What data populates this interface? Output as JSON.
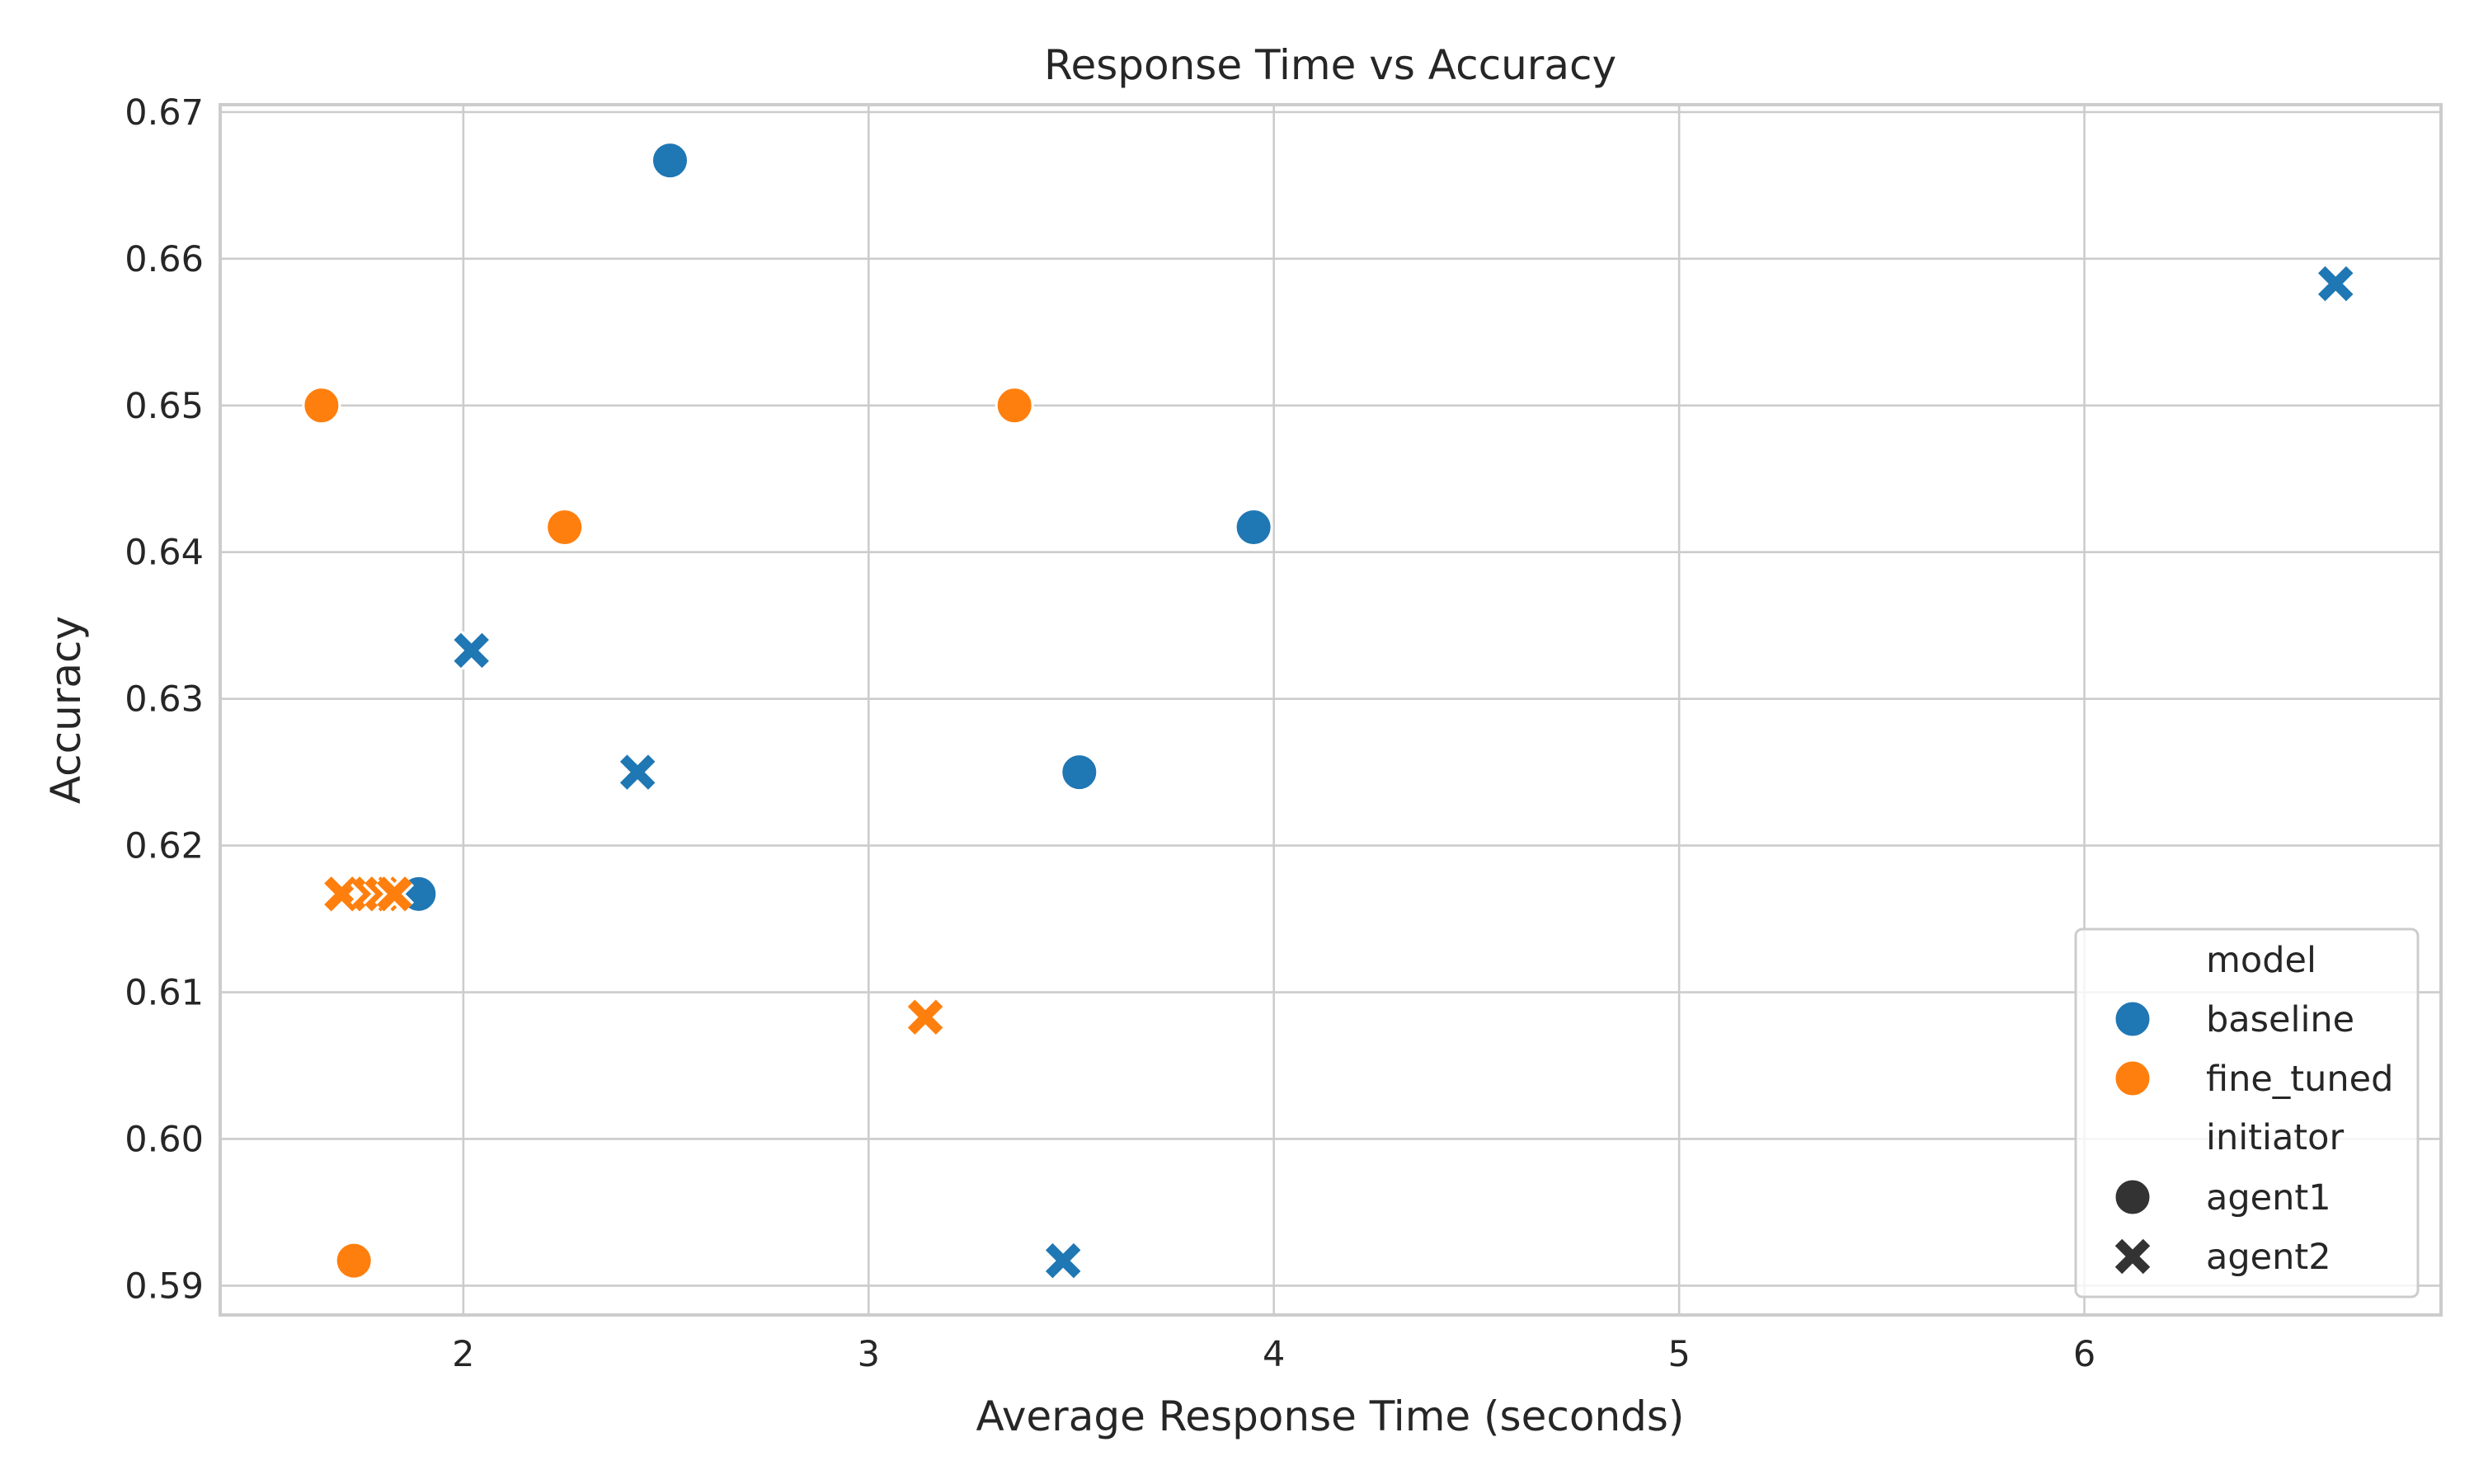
{
  "chart_data": {
    "type": "scatter",
    "title": "Response Time vs Accuracy",
    "xlabel": "Average Response Time (seconds)",
    "ylabel": "Accuracy",
    "xlim": [
      1.4,
      6.88
    ],
    "ylim": [
      0.588,
      0.6705
    ],
    "xticks": [
      2,
      3,
      4,
      5,
      6
    ],
    "yticks": [
      0.59,
      0.6,
      0.61,
      0.62,
      0.63,
      0.64,
      0.65,
      0.66,
      0.67
    ],
    "ytick_labels": [
      "0.59",
      "0.60",
      "0.61",
      "0.62",
      "0.63",
      "0.64",
      "0.65",
      "0.66",
      "0.67"
    ],
    "grid": true,
    "legend_position": "lower-right",
    "hue_title": "model",
    "style_title": "initiator",
    "colors": {
      "baseline": "#1f77b4",
      "fine_tuned": "#ff7f0e",
      "neutral": "#333333"
    },
    "hue_levels": [
      "baseline",
      "fine_tuned"
    ],
    "style_levels": [
      {
        "name": "agent1",
        "marker": "circle"
      },
      {
        "name": "agent2",
        "marker": "x"
      }
    ],
    "points": [
      {
        "x": 2.51,
        "y": 0.6667,
        "model": "baseline",
        "initiator": "agent1"
      },
      {
        "x": 3.95,
        "y": 0.6417,
        "model": "baseline",
        "initiator": "agent1"
      },
      {
        "x": 3.52,
        "y": 0.625,
        "model": "baseline",
        "initiator": "agent1"
      },
      {
        "x": 1.89,
        "y": 0.6167,
        "model": "baseline",
        "initiator": "agent1"
      },
      {
        "x": 6.62,
        "y": 0.6583,
        "model": "baseline",
        "initiator": "agent2"
      },
      {
        "x": 2.02,
        "y": 0.6333,
        "model": "baseline",
        "initiator": "agent2"
      },
      {
        "x": 2.43,
        "y": 0.625,
        "model": "baseline",
        "initiator": "agent2"
      },
      {
        "x": 3.48,
        "y": 0.5917,
        "model": "baseline",
        "initiator": "agent2"
      },
      {
        "x": 1.65,
        "y": 0.65,
        "model": "fine_tuned",
        "initiator": "agent1"
      },
      {
        "x": 3.36,
        "y": 0.65,
        "model": "fine_tuned",
        "initiator": "agent1"
      },
      {
        "x": 2.25,
        "y": 0.6417,
        "model": "fine_tuned",
        "initiator": "agent1"
      },
      {
        "x": 1.73,
        "y": 0.5917,
        "model": "fine_tuned",
        "initiator": "agent1"
      },
      {
        "x": 1.7,
        "y": 0.6167,
        "model": "fine_tuned",
        "initiator": "agent2"
      },
      {
        "x": 1.77,
        "y": 0.6167,
        "model": "fine_tuned",
        "initiator": "agent2"
      },
      {
        "x": 1.8,
        "y": 0.6167,
        "model": "fine_tuned",
        "initiator": "agent2"
      },
      {
        "x": 1.83,
        "y": 0.6167,
        "model": "fine_tuned",
        "initiator": "agent2"
      },
      {
        "x": 3.14,
        "y": 0.6083,
        "model": "fine_tuned",
        "initiator": "agent2"
      }
    ]
  }
}
